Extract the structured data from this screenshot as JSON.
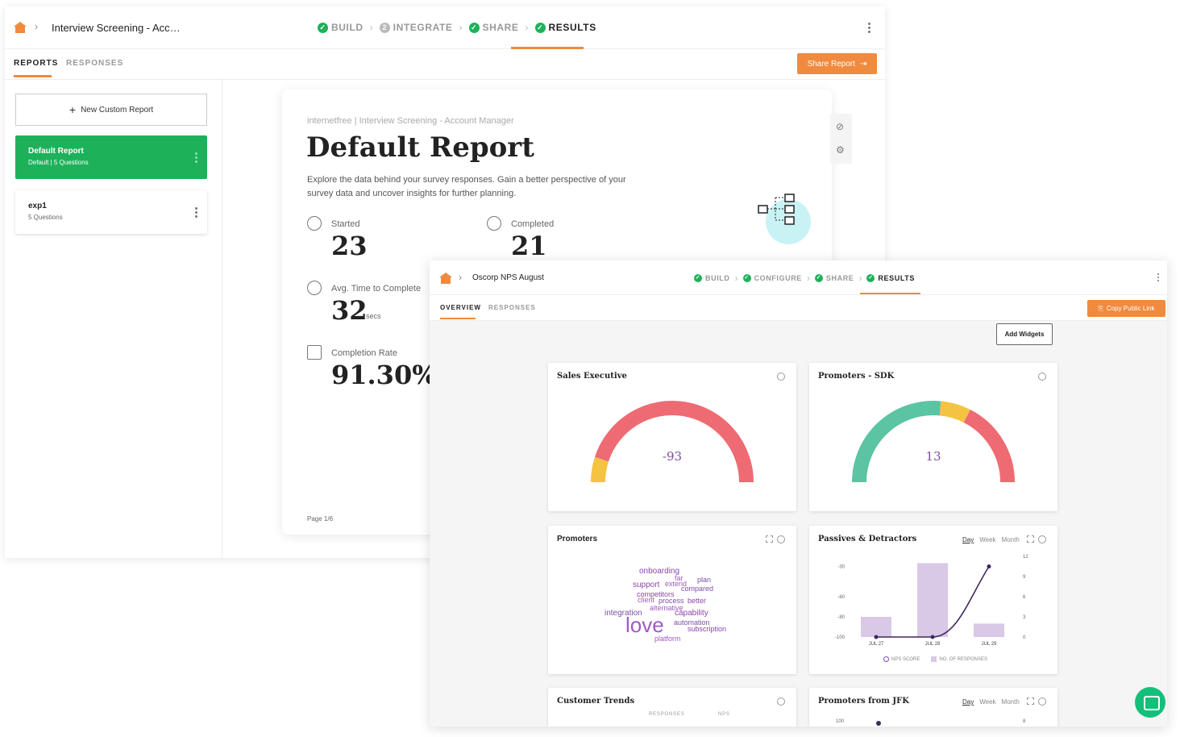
{
  "back_window": {
    "breadcrumb": "Interview Screening - Acc…",
    "steps": [
      {
        "label": "BUILD",
        "state": "done"
      },
      {
        "label": "INTEGRATE",
        "state": "pending",
        "num": "2"
      },
      {
        "label": "SHARE",
        "state": "done"
      },
      {
        "label": "RESULTS",
        "state": "active"
      }
    ],
    "tabs": {
      "reports": "REPORTS",
      "responses": "RESPONSES"
    },
    "share_button": "Share Report",
    "new_report": "New Custom Report",
    "reports": [
      {
        "title": "Default Report",
        "subtitle": "Default  |  5 Questions"
      },
      {
        "title": "exp1",
        "subtitle": "5 Questions"
      }
    ],
    "report": {
      "crumb": "internetfree  |  Interview Screening - Account Manager",
      "title": "Default Report",
      "description": "Explore the data behind your survey responses. Gain a better perspective of your survey data and uncover insights for further planning.",
      "started_label": "Started",
      "started_value": "23",
      "completed_label": "Completed",
      "completed_value": "21",
      "avg_label": "Avg. Time to Complete",
      "avg_value": "32",
      "avg_unit": "secs",
      "rate_label": "Completion Rate",
      "rate_value": "91.30%",
      "page": "Page 1/6"
    }
  },
  "front_window": {
    "breadcrumb": "Oscorp NPS August",
    "steps": [
      {
        "label": "BUILD",
        "state": "done"
      },
      {
        "label": "CONFIGURE",
        "state": "done"
      },
      {
        "label": "SHARE",
        "state": "done"
      },
      {
        "label": "RESULTS",
        "state": "active"
      }
    ],
    "tabs": {
      "overview": "OVERVIEW",
      "responses": "RESPONSES"
    },
    "copy_button": "Copy Public Link",
    "add_widgets": "Add Widgets",
    "widgets": {
      "sales_exec": {
        "title": "Sales Executive",
        "value": "-93"
      },
      "promoters_sdk": {
        "title": "Promoters - SDK",
        "value": "13"
      },
      "promoters": {
        "title": "Promoters"
      },
      "passives": {
        "title": "Passives & Detractors",
        "periods": [
          "Day",
          "Week",
          "Month"
        ],
        "legend_score": "NPS SCORE",
        "legend_responses": "NO. OF RESPONSES"
      },
      "customer_trends": {
        "title": "Customer Trends",
        "col_responses": "RESPONSES",
        "col_nps": "NPS"
      },
      "promoters_jfk": {
        "title": "Promoters from JFK",
        "periods": [
          "Day",
          "Week",
          "Month"
        ],
        "left_tick": "100",
        "right_tick": "8"
      }
    },
    "word_cloud": [
      {
        "word": "onboarding",
        "size": 10
      },
      {
        "word": "far",
        "size": 9
      },
      {
        "word": "plan",
        "size": 9
      },
      {
        "word": "support",
        "size": 10
      },
      {
        "word": "extend",
        "size": 9
      },
      {
        "word": "compared",
        "size": 9
      },
      {
        "word": "competitors",
        "size": 9
      },
      {
        "word": "client",
        "size": 9
      },
      {
        "word": "process",
        "size": 9
      },
      {
        "word": "better",
        "size": 9
      },
      {
        "word": "alternative",
        "size": 9
      },
      {
        "word": "integration",
        "size": 10
      },
      {
        "word": "capability",
        "size": 10
      },
      {
        "word": "love",
        "size": 26
      },
      {
        "word": "automation",
        "size": 9
      },
      {
        "word": "subscription",
        "size": 9
      },
      {
        "word": "platform",
        "size": 9
      }
    ]
  },
  "chart_data": [
    {
      "type": "gauge",
      "title": "Sales Executive",
      "value": -93,
      "range": [
        -100,
        100
      ],
      "segments": [
        {
          "color": "#f5c342",
          "to": -80
        },
        {
          "color": "#ee6b74",
          "to": 100
        }
      ]
    },
    {
      "type": "gauge",
      "title": "Promoters - SDK",
      "value": 13,
      "range": [
        -100,
        100
      ],
      "segments": [
        {
          "color": "#5ac4a3",
          "to": 6
        },
        {
          "color": "#f5c342",
          "to": 30
        },
        {
          "color": "#ee6b74",
          "to": 100
        }
      ]
    },
    {
      "type": "bar",
      "title": "Passives & Detractors",
      "categories": [
        "JUL 27",
        "JUL 28",
        "JUL 29"
      ],
      "left_ticks": [
        "-30",
        "-60",
        "-80",
        "-100"
      ],
      "right_ticks": [
        "12",
        "9",
        "6",
        "3",
        "0"
      ],
      "series": [
        {
          "name": "NO. OF RESPONSES",
          "type": "bar",
          "axis": "right",
          "values": [
            3,
            11,
            2
          ]
        },
        {
          "name": "NPS SCORE",
          "type": "line",
          "axis": "left",
          "values": [
            -100,
            -100,
            -30
          ]
        }
      ],
      "colors": {
        "bar": "#d9c8e6",
        "line": "#3e2760"
      }
    }
  ]
}
